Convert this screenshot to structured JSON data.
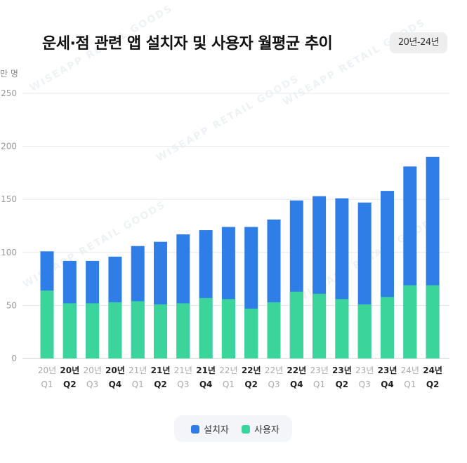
{
  "header": {
    "title": "운세·점 관련 앱 설치자 및 사용자 월평균 추이",
    "period_badge": "20년-24년",
    "unit": "만 명"
  },
  "watermark": "WISEAPP RETAIL GOODS",
  "colors": {
    "installers": "#2f7ee8",
    "users": "#3bd49a",
    "grid": "#e8e8e8",
    "tick_dim": "#aaaaaa",
    "tick_bold": "#222222"
  },
  "chart_data": {
    "type": "bar",
    "stacked": true,
    "categories": [
      {
        "year": "20년",
        "quarter": "Q1",
        "emphasis": false
      },
      {
        "year": "20년",
        "quarter": "Q2",
        "emphasis": true
      },
      {
        "year": "20년",
        "quarter": "Q3",
        "emphasis": false
      },
      {
        "year": "20년",
        "quarter": "Q4",
        "emphasis": true
      },
      {
        "year": "21년",
        "quarter": "Q1",
        "emphasis": false
      },
      {
        "year": "21년",
        "quarter": "Q2",
        "emphasis": true
      },
      {
        "year": "21년",
        "quarter": "Q3",
        "emphasis": false
      },
      {
        "year": "21년",
        "quarter": "Q4",
        "emphasis": true
      },
      {
        "year": "22년",
        "quarter": "Q1",
        "emphasis": false
      },
      {
        "year": "22년",
        "quarter": "Q2",
        "emphasis": true
      },
      {
        "year": "22년",
        "quarter": "Q3",
        "emphasis": false
      },
      {
        "year": "22년",
        "quarter": "Q4",
        "emphasis": true
      },
      {
        "year": "23년",
        "quarter": "Q1",
        "emphasis": false
      },
      {
        "year": "23년",
        "quarter": "Q2",
        "emphasis": true
      },
      {
        "year": "23년",
        "quarter": "Q3",
        "emphasis": false
      },
      {
        "year": "23년",
        "quarter": "Q4",
        "emphasis": true
      },
      {
        "year": "24년",
        "quarter": "Q1",
        "emphasis": false
      },
      {
        "year": "24년",
        "quarter": "Q2",
        "emphasis": true
      }
    ],
    "series": [
      {
        "name": "사용자",
        "key": "users",
        "values": [
          64,
          52,
          52,
          53,
          54,
          51,
          52,
          57,
          56,
          47,
          53,
          63,
          61,
          56,
          51,
          58,
          69,
          69
        ]
      },
      {
        "name": "설치자",
        "key": "installers",
        "values": [
          101,
          92,
          92,
          96,
          106,
          110,
          117,
          121,
          124,
          124,
          131,
          149,
          153,
          151,
          147,
          158,
          181,
          190
        ]
      }
    ],
    "installers_are_totals": true,
    "yticks": [
      0,
      50,
      100,
      150,
      200,
      250
    ],
    "ylim": [
      0,
      250
    ],
    "legend": [
      {
        "label": "설치자",
        "key": "installers"
      },
      {
        "label": "사용자",
        "key": "users"
      }
    ],
    "legend_position": "bottom-center"
  }
}
